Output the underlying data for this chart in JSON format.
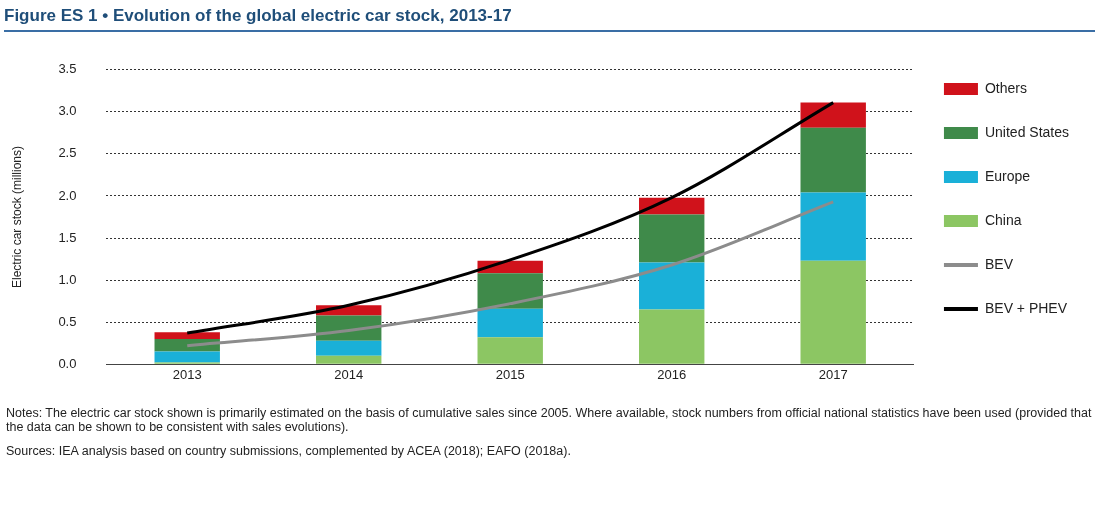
{
  "chart_data": {
    "type": "bar",
    "title": "Figure ES 1 • Evolution of the global electric car stock, 2013-17",
    "ylabel": "Electric car stock (millions)",
    "categories": [
      "2013",
      "2014",
      "2015",
      "2016",
      "2017"
    ],
    "stacked": true,
    "series": [
      {
        "name": "China",
        "color": "#8cc663",
        "values": [
          0.02,
          0.1,
          0.32,
          0.65,
          1.23
        ]
      },
      {
        "name": "Europe",
        "color": "#1ab0d8",
        "values": [
          0.13,
          0.18,
          0.34,
          0.56,
          0.81
        ]
      },
      {
        "name": "United States",
        "color": "#3f8a4a",
        "values": [
          0.15,
          0.3,
          0.42,
          0.57,
          0.77
        ]
      },
      {
        "name": "Others",
        "color": "#d0121b",
        "values": [
          0.08,
          0.12,
          0.15,
          0.2,
          0.3
        ]
      },
      {
        "name": "BEV",
        "type": "line",
        "color": "#8c8c8c",
        "values": [
          0.22,
          0.4,
          0.72,
          1.18,
          1.93
        ]
      },
      {
        "name": "BEV + PHEV",
        "type": "line",
        "color": "#000000",
        "values": [
          0.37,
          0.7,
          1.24,
          1.98,
          3.11
        ]
      }
    ],
    "ylim": [
      0,
      3.5
    ],
    "yticks": [
      {
        "value": 0,
        "label": "0.0"
      },
      {
        "value": 0.5,
        "label": "0.5"
      },
      {
        "value": 1,
        "label": "1.0"
      },
      {
        "value": 1.5,
        "label": "1.5"
      },
      {
        "value": 2,
        "label": "2.0"
      },
      {
        "value": 2.5,
        "label": "2.5"
      },
      {
        "value": 3,
        "label": "3.0"
      },
      {
        "value": 3.5,
        "label": "3.5"
      }
    ],
    "grid": "y",
    "legend": "right",
    "marker": "none",
    "line_style": "solid",
    "annotations": [
      "Notes: The electric car stock shown is primarily estimated on the basis of cumulative sales since 2005. Where available, stock numbers from official national statistics have been used (provided that the data can be shown to be consistent with sales evolutions).",
      "Sources: IEA analysis based on country submissions, complemented by ACEA (2018); EAFO (2018a)."
    ]
  }
}
